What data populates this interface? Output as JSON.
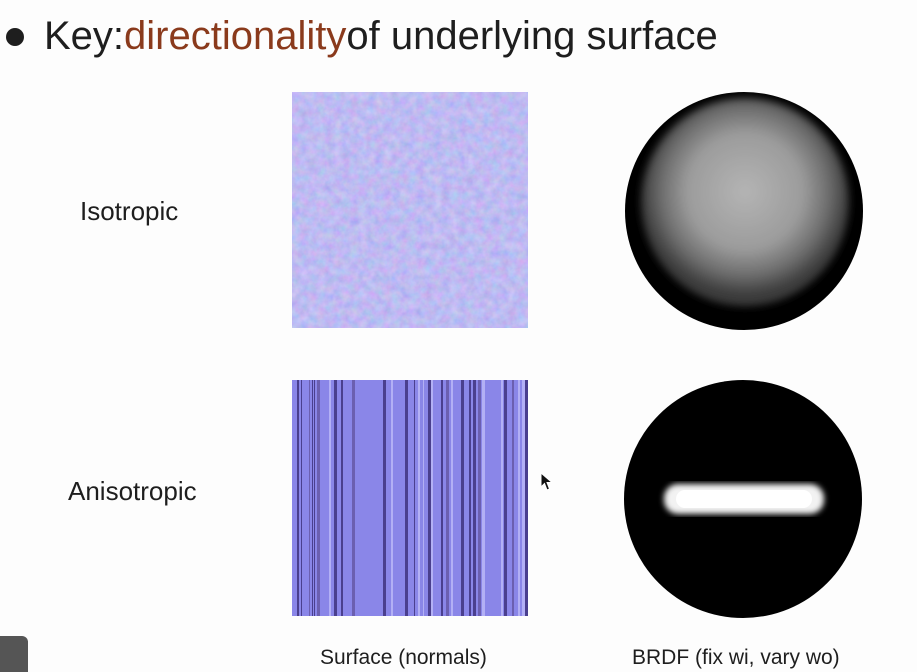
{
  "headline": {
    "prefix": "Key: ",
    "accent": "directionality",
    "suffix": " of underlying surface"
  },
  "rows": [
    {
      "label": "Isotropic"
    },
    {
      "label": "Anisotropic"
    }
  ],
  "captions": {
    "surface": "Surface (normals)",
    "brdf": "BRDF (fix wi, vary wo)"
  },
  "colors": {
    "accent": "#8a3a1c",
    "normal_map": "#8a86e8"
  }
}
